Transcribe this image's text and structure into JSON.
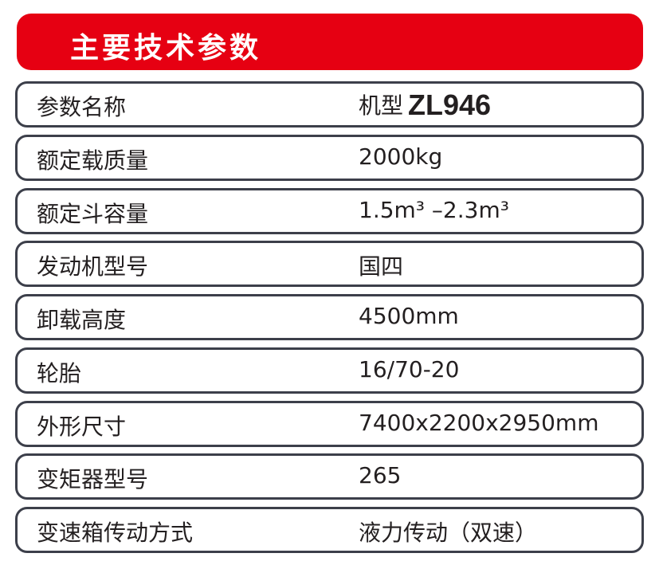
{
  "title": "主要技术参数",
  "header_row": {
    "label": "参数名称",
    "value_prefix": "机型",
    "model": "ZL946"
  },
  "rows": [
    {
      "label": "额定载质量",
      "value": "2000kg"
    },
    {
      "label": "额定斗容量",
      "value": "1.5m³ –2.3m³"
    },
    {
      "label": "发动机型号",
      "value": "国四"
    },
    {
      "label": "卸载高度",
      "value": "4500mm"
    },
    {
      "label": "轮胎",
      "value": "16/70-20"
    },
    {
      "label": "外形尺寸",
      "value": "7400x2200x2950mm"
    },
    {
      "label": "变矩器型号",
      "value": "265"
    },
    {
      "label": "变速箱传动方式",
      "value": "液力传动（双速）"
    }
  ],
  "colors": {
    "accent": "#e60012",
    "border": "#3c3f4a"
  }
}
